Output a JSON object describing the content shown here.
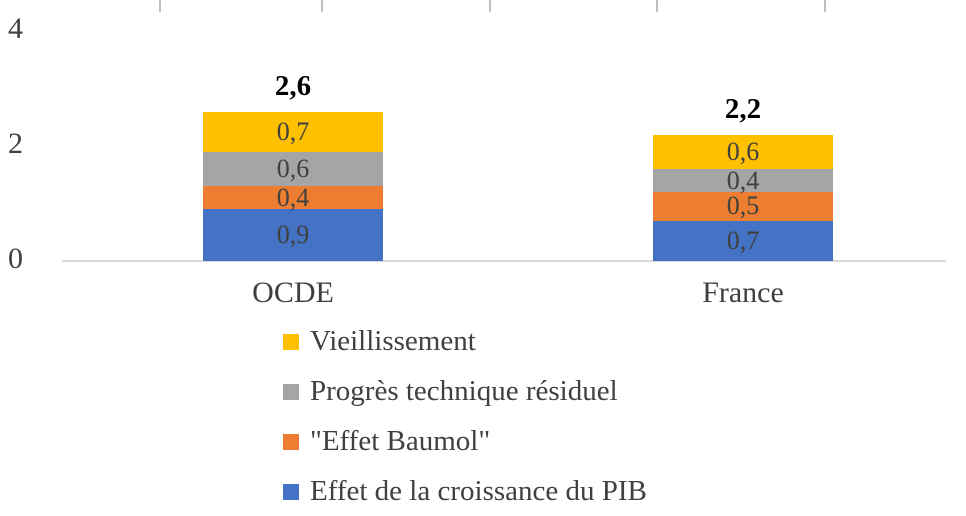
{
  "chart_data": {
    "type": "bar",
    "stacked": true,
    "title": "",
    "xlabel": "",
    "ylabel": "",
    "ylim": [
      0,
      4
    ],
    "y_ticks": [
      "0",
      "2",
      "4"
    ],
    "grid": false,
    "legend_position": "bottom",
    "decimal_separator": ",",
    "categories": [
      "OCDE",
      "France"
    ],
    "series": [
      {
        "name": "Effet de la croissance du PIB",
        "color": "#4472C4",
        "values": [
          0.9,
          0.7
        ],
        "labels": [
          "0,9",
          "0,7"
        ]
      },
      {
        "name": "\"Effet Baumol\"",
        "color": "#ED7D31",
        "values": [
          0.4,
          0.5
        ],
        "labels": [
          "0,4",
          "0,5"
        ]
      },
      {
        "name": "Progrès technique résiduel",
        "color": "#A5A5A5",
        "values": [
          0.6,
          0.4
        ],
        "labels": [
          "0,6",
          "0,4"
        ]
      },
      {
        "name": "Vieillissement",
        "color": "#FFC000",
        "values": [
          0.7,
          0.6
        ],
        "labels": [
          "0,7",
          "0,6"
        ]
      }
    ],
    "totals": [
      "2,6",
      "2,2"
    ],
    "legend_order": [
      "Vieillissement",
      "Progrès technique résiduel",
      "\"Effet Baumol\"",
      "Effet de la croissance du PIB"
    ]
  }
}
